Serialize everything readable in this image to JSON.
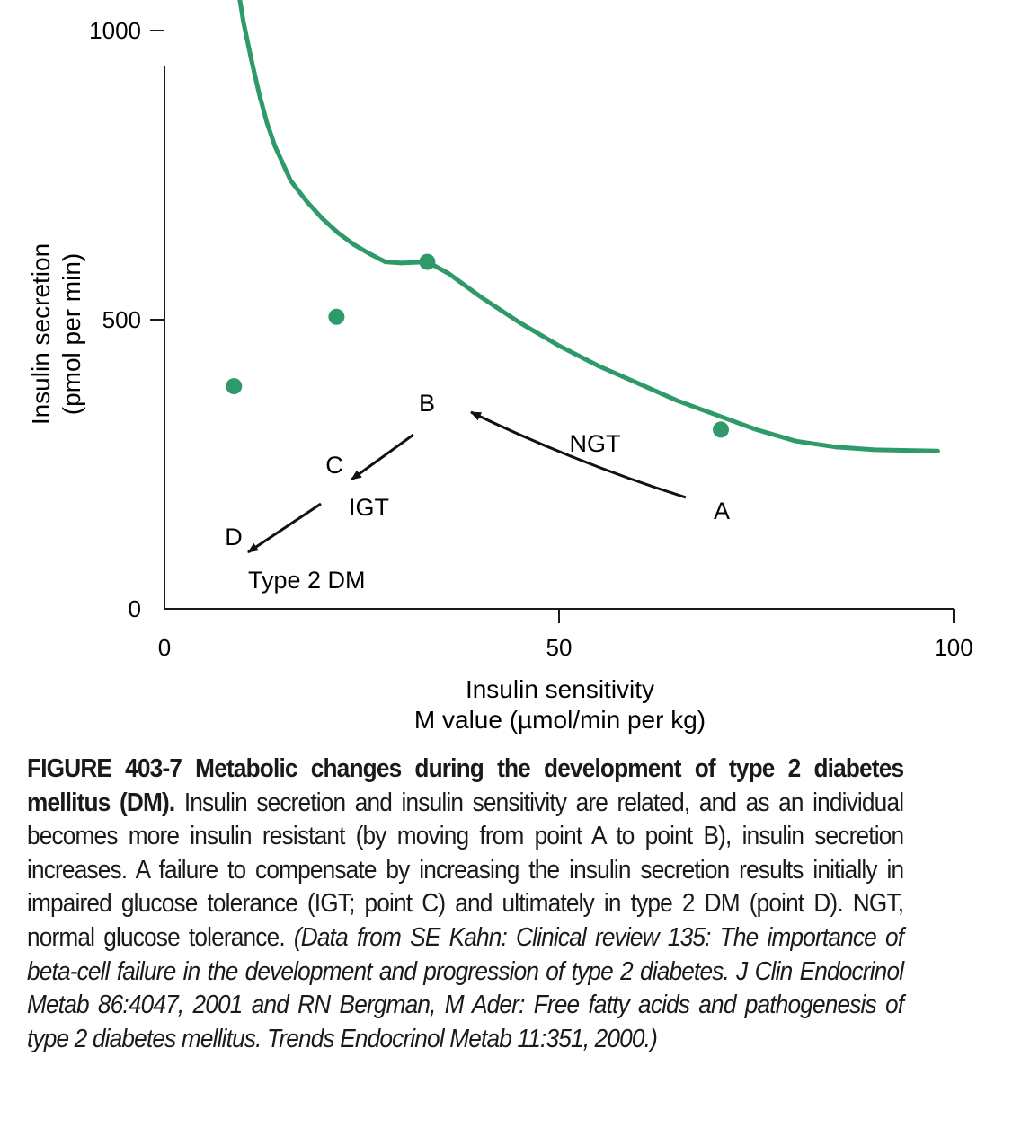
{
  "chart_data": {
    "type": "line",
    "xlabel_line1": "Insulin sensitivity",
    "xlabel_line2": "M value (µmol/min per kg)",
    "ylabel_line1": "Insulin secretion",
    "ylabel_line2": "(pmol per min)",
    "xlim": [
      0,
      100
    ],
    "ylim": [
      0,
      1200
    ],
    "x_ticks": [
      0,
      50,
      100
    ],
    "y_ticks": [
      0,
      500,
      1000
    ],
    "x_tick_labels": [
      "0",
      "50",
      "100"
    ],
    "y_tick_labels": [
      "0",
      "500",
      "1000"
    ],
    "curve": {
      "name": "hyperbolic relation",
      "x": [
        8.5,
        9,
        10,
        11,
        12,
        13,
        14,
        16,
        18,
        20,
        22,
        24,
        26,
        28,
        30,
        33.3,
        36,
        40,
        45,
        50,
        55,
        60,
        65,
        70,
        75,
        80,
        85,
        90,
        98
      ],
      "y": [
        1170,
        1100,
        1015,
        950,
        890,
        840,
        800,
        740,
        705,
        675,
        650,
        630,
        614,
        600,
        598,
        600,
        580,
        540,
        495,
        455,
        420,
        390,
        360,
        335,
        310,
        290,
        280,
        275,
        273
      ]
    },
    "points": [
      {
        "label": "A",
        "x": 70.5,
        "y": 310
      },
      {
        "label": "B",
        "x": 33.3,
        "y": 600
      },
      {
        "label": "C",
        "x": 21.8,
        "y": 505
      },
      {
        "label": "D",
        "x": 8.8,
        "y": 385
      }
    ],
    "annotations": [
      {
        "text": "NGT",
        "near": "arrow from A to B"
      },
      {
        "text": "IGT",
        "near": "point C"
      },
      {
        "text": "Type 2 DM",
        "near": "point D"
      }
    ],
    "colors": {
      "curve": "#2e9a6a",
      "points": "#2e9a6a",
      "axes": "#1a1a1a",
      "arrows": "#111111"
    }
  },
  "caption": {
    "title": "FIGURE 403-7 Metabolic changes during the development of type 2 diabetes mellitus (DM).",
    "body": " Insulin secretion and insulin sensitivity are related, and as an individual becomes more insulin resistant (by moving from point A to point B), insulin secretion increases. A failure to compensate by increasing the insulin secretion results initially in impaired glucose tolerance (IGT; point C) and ultimately in type 2 DM (point D). NGT, normal glucose tolerance. ",
    "source": "(Data from SE Kahn: Clinical review 135: The importance of beta-cell failure in the development and progression of type 2 diabetes. J Clin Endocrinol Metab 86:4047, 2001 and RN Bergman, M Ader: Free fatty acids and pathogenesis of type 2 diabetes mellitus. Trends Endocrinol Metab 11:351, 2000.)"
  }
}
